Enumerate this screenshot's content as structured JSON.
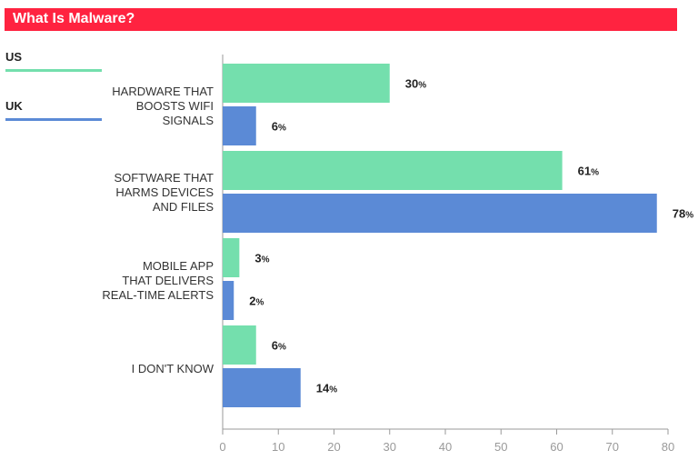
{
  "title": "What Is Malware?",
  "colors": {
    "title_bg": "#ff2340",
    "us": "#74dfad",
    "uk": "#5b8ad6",
    "axis": "#9a9a9a"
  },
  "legend": [
    {
      "label": "US",
      "color": "#74dfad"
    },
    {
      "label": "UK",
      "color": "#5b8ad6"
    }
  ],
  "chart_data": {
    "type": "bar",
    "orientation": "horizontal",
    "title": "What Is Malware?",
    "categories": [
      "Hardware that boosts WiFi signals",
      "Software that harms devices and files",
      "Mobile app that delivers real-time alerts",
      "I don't know"
    ],
    "category_lines": [
      [
        "HARDWARE THAT",
        "BOOSTS WIFI",
        "SIGNALS"
      ],
      [
        "SOFTWARE THAT",
        "HARMS DEVICES",
        "AND FILES"
      ],
      [
        "MOBILE APP",
        "THAT DELIVERS",
        "REAL-TIME ALERTS"
      ],
      [
        "I DON'T KNOW"
      ]
    ],
    "series": [
      {
        "name": "US",
        "values": [
          30,
          61,
          3,
          6
        ]
      },
      {
        "name": "UK",
        "values": [
          6,
          78,
          2,
          14
        ]
      }
    ],
    "xlim": [
      0,
      80
    ],
    "xticks": [
      0,
      10,
      20,
      30,
      40,
      50,
      60,
      70,
      80
    ],
    "value_suffix": "%",
    "grid": false,
    "legend_position": "top-left"
  }
}
